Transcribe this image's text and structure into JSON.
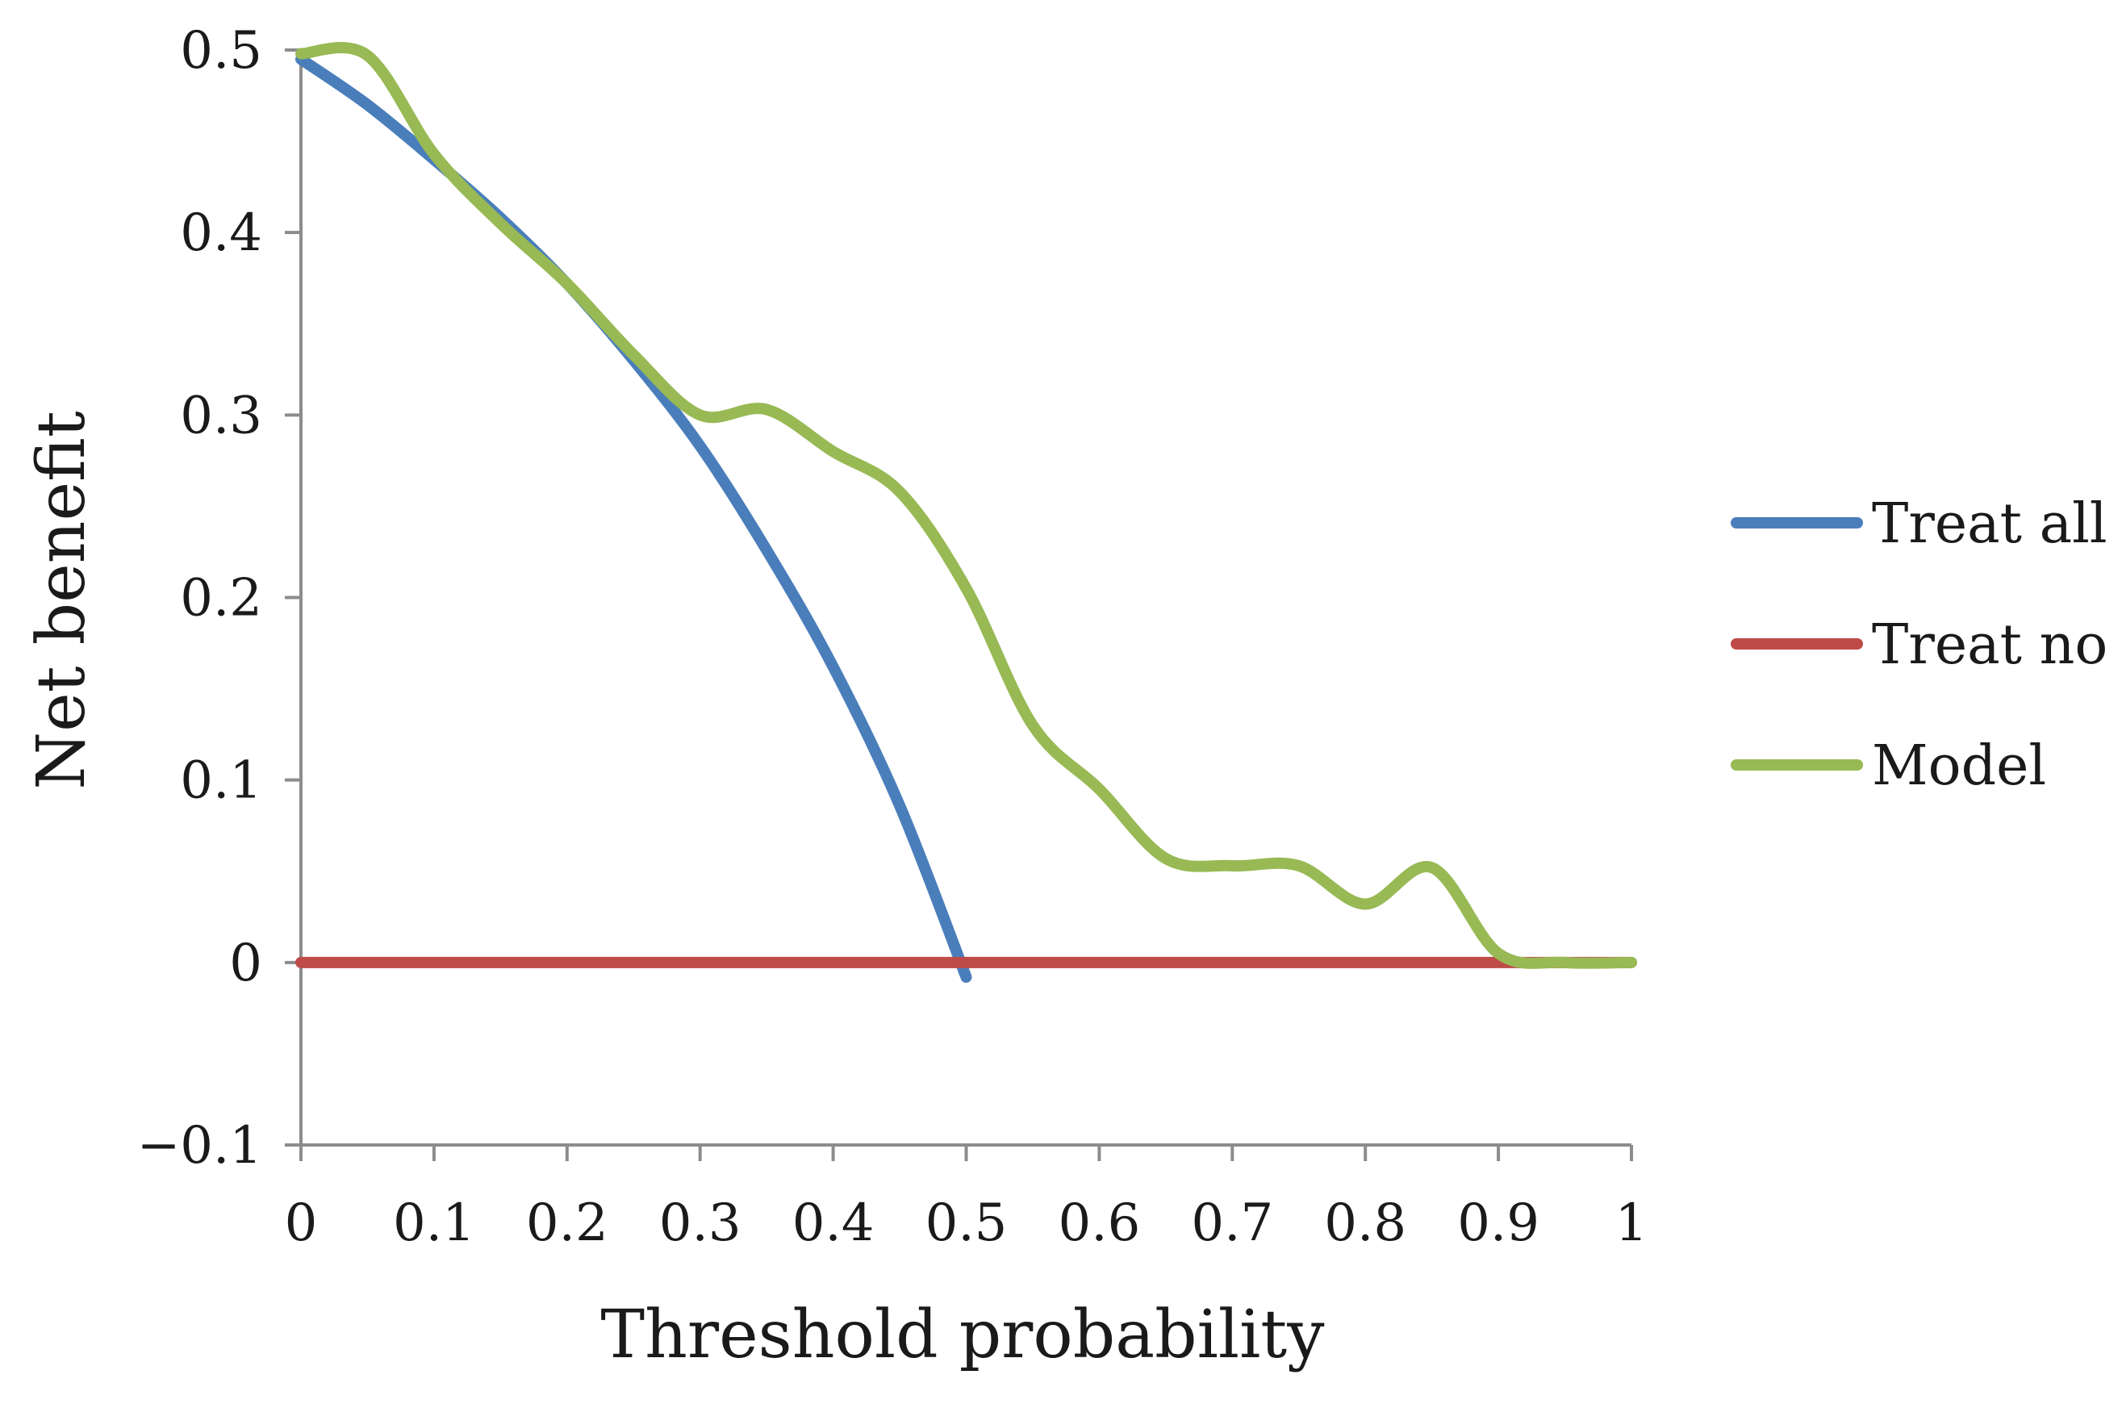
{
  "chart_data": {
    "type": "line",
    "title": "",
    "xlabel": "Threshold probability",
    "ylabel": "Net benefit",
    "xlim": [
      0,
      1
    ],
    "ylim": [
      -0.1,
      0.5
    ],
    "grid": false,
    "legend_position": "right",
    "x_ticks": [
      0,
      0.1,
      0.2,
      0.3,
      0.4,
      0.5,
      0.6,
      0.7,
      0.8,
      0.9,
      1
    ],
    "x_tick_labels": [
      "0",
      "0.1",
      "0.2",
      "0.3",
      "0.4",
      "0.5",
      "0.6",
      "0.7",
      "0.8",
      "0.9",
      "1"
    ],
    "y_ticks": [
      -0.1,
      0,
      0.1,
      0.2,
      0.3,
      0.4,
      0.5
    ],
    "y_tick_labels": [
      "−0.1",
      "0",
      "0.1",
      "0.2",
      "0.3",
      "0.4",
      "0.5"
    ],
    "series": [
      {
        "name": "Treat all",
        "color": "#4a7ebb",
        "x": [
          0,
          0.05,
          0.1,
          0.15,
          0.2,
          0.25,
          0.3,
          0.35,
          0.4,
          0.45,
          0.5
        ],
        "y": [
          0.495,
          0.47,
          0.44,
          0.408,
          0.372,
          0.33,
          0.283,
          0.226,
          0.162,
          0.086,
          -0.008
        ]
      },
      {
        "name": "Treat no",
        "color": "#be4b48",
        "x": [
          0,
          1
        ],
        "y": [
          0,
          0
        ]
      },
      {
        "name": "Model",
        "color": "#98b954",
        "x": [
          0,
          0.05,
          0.1,
          0.15,
          0.2,
          0.25,
          0.3,
          0.35,
          0.4,
          0.45,
          0.5,
          0.55,
          0.6,
          0.65,
          0.7,
          0.75,
          0.8,
          0.85,
          0.9,
          0.95,
          1
        ],
        "y": [
          0.498,
          0.497,
          0.443,
          0.405,
          0.372,
          0.333,
          0.3,
          0.303,
          0.28,
          0.258,
          0.205,
          0.13,
          0.095,
          0.057,
          0.053,
          0.053,
          0.032,
          0.052,
          0.005,
          0,
          0
        ]
      }
    ]
  }
}
